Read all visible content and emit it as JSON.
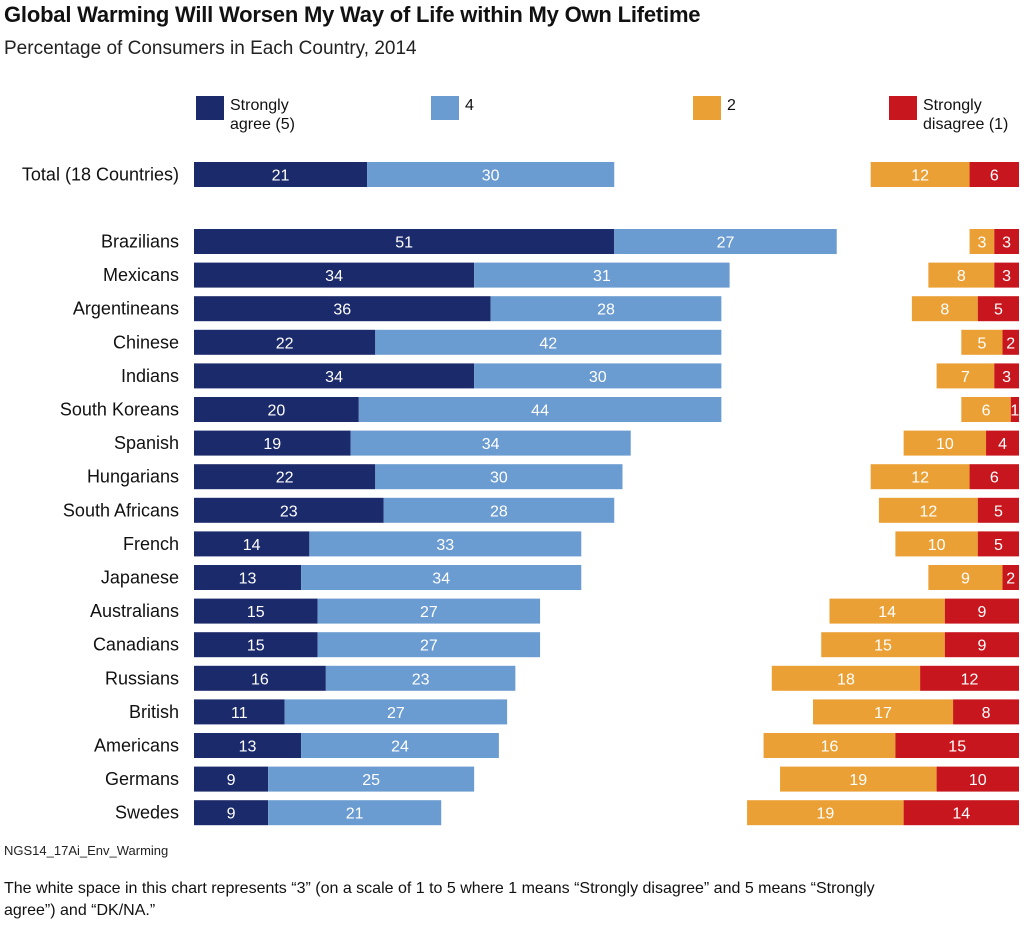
{
  "title": "Global Warming Will Worsen My Way of Life within My Own Lifetime",
  "subtitle": "Percentage of Consumers in Each Country, 2014",
  "colors": {
    "strongly_agree": "#1b2a6b",
    "agree": "#6a9bd1",
    "disagree": "#eba035",
    "strongly_disagree": "#c8161e"
  },
  "legend": {
    "strongly_agree": "Strongly\nagree (5)",
    "agree": "4",
    "disagree": "2",
    "strongly_disagree": "Strongly\ndisagree (1)"
  },
  "code": "NGS14_17Ai_Env_Warming",
  "note": "The white space in this chart represents “3” (on a scale of 1 to 5 where 1 means “Strongly disagree” and 5 means “Strongly agree”) and “DK/NA.”",
  "chart_data": {
    "type": "bar",
    "orientation": "horizontal-diverging",
    "categories": [
      "Total (18 Countries)",
      "Brazilians",
      "Mexicans",
      "Argentineans",
      "Chinese",
      "Indians",
      "South Koreans",
      "Spanish",
      "Hungarians",
      "South Africans",
      "French",
      "Japanese",
      "Australians",
      "Canadians",
      "Russians",
      "British",
      "Americans",
      "Germans",
      "Swedes"
    ],
    "series": [
      {
        "name": "Strongly agree (5)",
        "values": [
          21,
          51,
          34,
          36,
          22,
          34,
          20,
          19,
          22,
          23,
          14,
          13,
          15,
          15,
          16,
          11,
          13,
          9,
          9
        ]
      },
      {
        "name": "4",
        "values": [
          30,
          27,
          31,
          28,
          42,
          30,
          44,
          34,
          30,
          28,
          33,
          34,
          27,
          27,
          23,
          27,
          24,
          25,
          21
        ]
      },
      {
        "name": "2",
        "values": [
          12,
          3,
          8,
          8,
          5,
          7,
          6,
          10,
          12,
          12,
          10,
          9,
          14,
          15,
          18,
          17,
          16,
          19,
          19
        ]
      },
      {
        "name": "Strongly disagree (1)",
        "values": [
          6,
          3,
          3,
          5,
          2,
          3,
          1,
          4,
          6,
          5,
          5,
          2,
          9,
          9,
          12,
          8,
          15,
          10,
          14
        ]
      }
    ],
    "legend_position": "top",
    "grid": false
  }
}
